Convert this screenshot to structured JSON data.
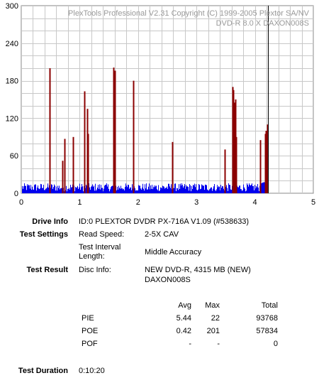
{
  "chart_data": {
    "type": "bar",
    "watermark_line1": "PlexTools Professional V2.31 Copyright (C) 1999-2005 Plextor SA/NV",
    "watermark_line2": "DVD-R   8.0 X   DAXON008S",
    "x_ticks": [
      "0",
      "1",
      "2",
      "3",
      "4",
      "5"
    ],
    "y_ticks": [
      "0",
      "60",
      "120",
      "180",
      "240",
      "300"
    ],
    "xlim": [
      0,
      5
    ],
    "ylim": [
      0,
      300
    ],
    "grid": true,
    "cursor_x": 4.22,
    "data_end_x": 4.22,
    "colors": {
      "pie": "#0000ee",
      "poe": "#8b0000",
      "cursor": "#000000",
      "grid": "#c8c8c8"
    },
    "series": [
      {
        "key": "pie",
        "baseline_range": [
          3,
          16
        ],
        "edge_rise": [
          [
            4.1,
            16
          ],
          [
            4.22,
            22
          ]
        ]
      },
      {
        "key": "poe",
        "spikes": [
          [
            0.48,
            200
          ],
          [
            0.49,
            130
          ],
          [
            0.7,
            52
          ],
          [
            0.74,
            87
          ],
          [
            0.88,
            90
          ],
          [
            0.89,
            74
          ],
          [
            1.08,
            163
          ],
          [
            1.13,
            135
          ],
          [
            1.14,
            95
          ],
          [
            1.58,
            201
          ],
          [
            1.6,
            196
          ],
          [
            1.92,
            180
          ],
          [
            2.58,
            82
          ],
          [
            3.48,
            70
          ],
          [
            3.62,
            170
          ],
          [
            3.63,
            165
          ],
          [
            3.65,
            145
          ],
          [
            3.67,
            150
          ],
          [
            3.68,
            90
          ],
          [
            4.09,
            85
          ],
          [
            4.17,
            95
          ],
          [
            4.19,
            100
          ],
          [
            4.21,
            110
          ]
        ]
      }
    ]
  },
  "info": {
    "drive_info_label": "Drive Info",
    "drive_info_value": "ID:0 PLEXTOR DVDR PX-716A V1.09 (#538633)",
    "test_settings_label": "Test Settings",
    "read_speed_label": "Read Speed:",
    "read_speed_value": "2-5X CAV",
    "interval_label_1": "Test Interval",
    "interval_label_2": "Length:",
    "interval_value": "Middle Accuracy",
    "test_result_label": "Test Result",
    "disc_info_label": "Disc Info:",
    "disc_info_value_1": "NEW DVD-R, 4315 MB (NEW)",
    "disc_info_value_2": "DAXON008S"
  },
  "stats": {
    "headers": {
      "avg": "Avg",
      "max": "Max",
      "total": "Total"
    },
    "rows": [
      {
        "name": "PIE",
        "avg": "5.44",
        "max": "22",
        "total": "93768"
      },
      {
        "name": "POE",
        "avg": "0.42",
        "max": "201",
        "total": "57834"
      },
      {
        "name": "POF",
        "avg": "-",
        "max": "-",
        "total": "0"
      }
    ]
  },
  "duration": {
    "label": "Test Duration",
    "value": "0:10:20"
  }
}
